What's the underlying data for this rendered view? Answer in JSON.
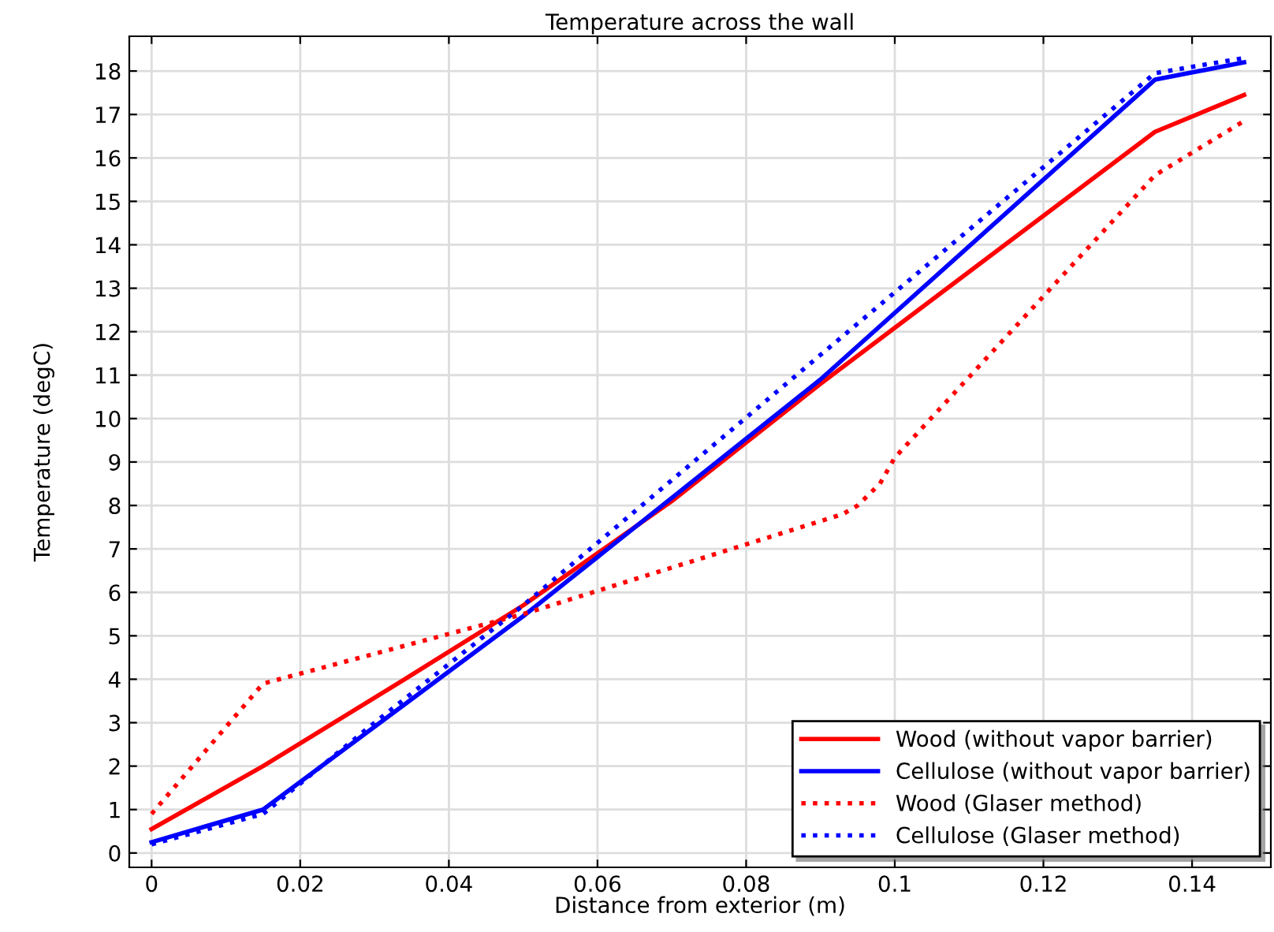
{
  "chart_data": {
    "type": "line",
    "title": "Temperature across the wall",
    "xlabel": "Distance from exterior (m)",
    "ylabel": "Temperature (degC)",
    "xlim": [
      -0.003,
      0.1506
    ],
    "xticks": [
      0,
      0.02,
      0.04,
      0.06,
      0.08,
      0.1,
      0.12,
      0.14
    ],
    "ylim": [
      -0.33,
      18.8
    ],
    "yticks": [
      0,
      1,
      2,
      3,
      4,
      5,
      6,
      7,
      8,
      9,
      10,
      11,
      12,
      13,
      14,
      15,
      16,
      17,
      18
    ],
    "grid": true,
    "legend": "bottom right",
    "series": [
      {
        "name": "Wood (without vapor barrier)",
        "color": "#ff0000",
        "line_style": "solid",
        "x": [
          0,
          0.015,
          0.035,
          0.05,
          0.07,
          0.09,
          0.135,
          0.147
        ],
        "values": [
          0.55,
          2.0,
          4.1,
          5.7,
          8.1,
          10.8,
          16.6,
          17.45
        ]
      },
      {
        "name": "Cellulose (without vapor barrier)",
        "color": "#0000ff",
        "line_style": "solid",
        "x": [
          0,
          0.015,
          0.05,
          0.09,
          0.135,
          0.147
        ],
        "values": [
          0.25,
          1.0,
          5.45,
          10.9,
          17.8,
          18.2
        ]
      },
      {
        "name": "Wood (Glaser method)",
        "color": "#ff0000",
        "line_style": "dotted",
        "x": [
          0,
          0.015,
          0.05,
          0.093,
          0.095,
          0.098,
          0.1,
          0.135,
          0.147
        ],
        "values": [
          0.9,
          3.9,
          5.5,
          7.8,
          8.0,
          8.5,
          9.1,
          15.6,
          16.85
        ]
      },
      {
        "name": "Cellulose (Glaser method)",
        "color": "#0000ff",
        "line_style": "dotted",
        "x": [
          0,
          0.015,
          0.03,
          0.05,
          0.135,
          0.147
        ],
        "values": [
          0.2,
          0.9,
          3.0,
          5.7,
          17.95,
          18.3
        ]
      }
    ]
  }
}
